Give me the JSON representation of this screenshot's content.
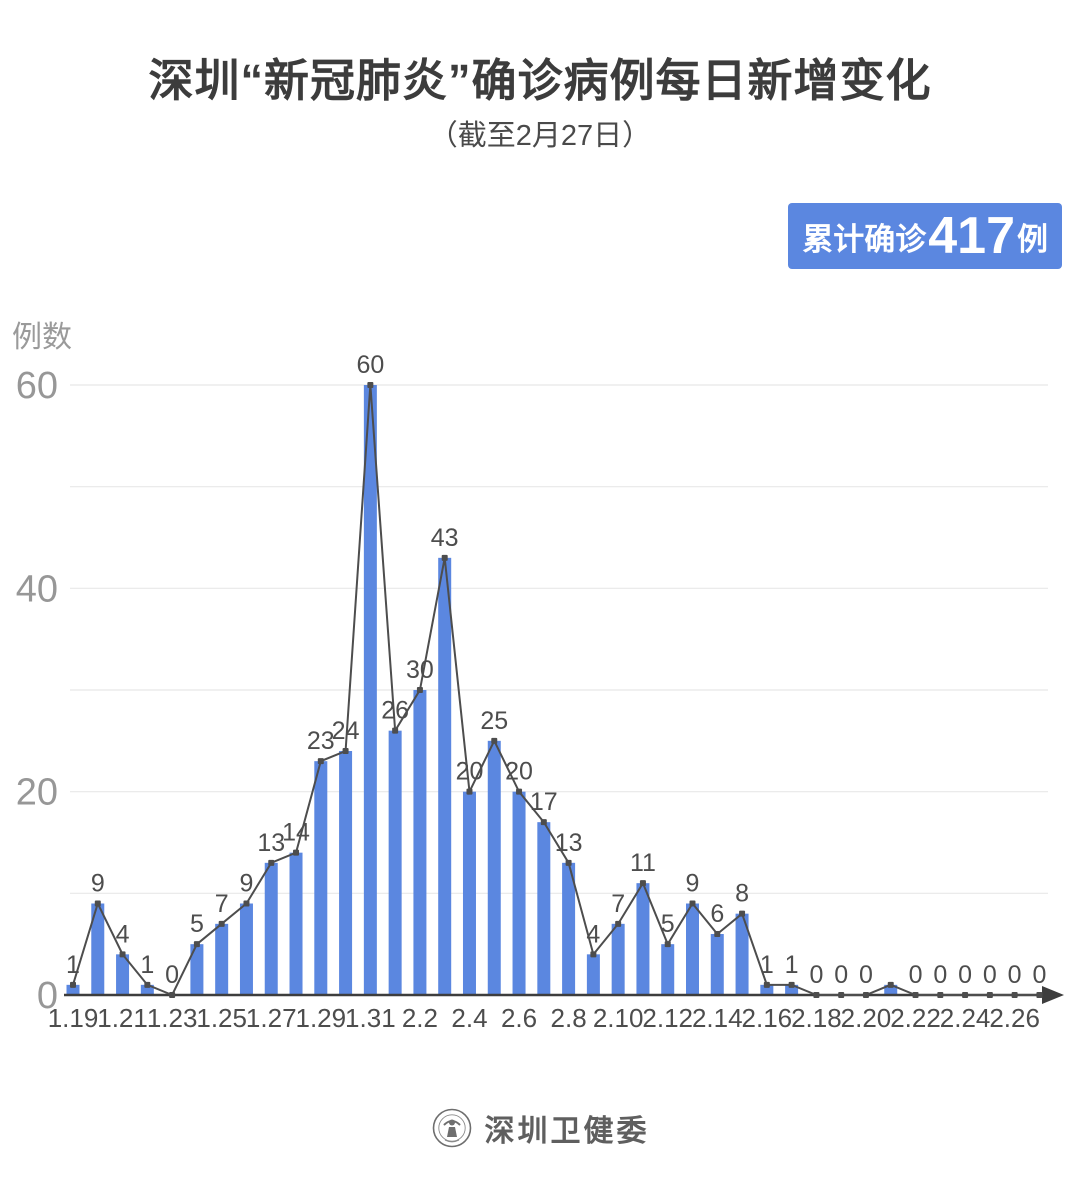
{
  "header": {
    "title": "深圳“新冠肺炎”确诊病例每日新增变化",
    "subtitle": "（截至2月27日）"
  },
  "badge": {
    "prefix": "累计确诊",
    "value": "417",
    "suffix": "例",
    "bg_color": "#5b87e0",
    "text_color": "#ffffff"
  },
  "chart_data": {
    "type": "bar",
    "ylabel": "例数",
    "categories": [
      "1.19",
      "1.20",
      "1.21",
      "1.22",
      "1.23",
      "1.24",
      "1.25",
      "1.26",
      "1.27",
      "1.28",
      "1.29",
      "1.30",
      "1.31",
      "2.1",
      "2.2",
      "2.3",
      "2.4",
      "2.5",
      "2.6",
      "2.7",
      "2.8",
      "2.9",
      "2.10",
      "2.11",
      "2.12",
      "2.13",
      "2.14",
      "2.15",
      "2.16",
      "2.17",
      "2.18",
      "2.19",
      "2.20",
      "2.21",
      "2.22",
      "2.23",
      "2.24",
      "2.25",
      "2.26",
      "2.27"
    ],
    "values": [
      1,
      9,
      4,
      1,
      0,
      5,
      7,
      9,
      13,
      14,
      23,
      24,
      60,
      26,
      30,
      43,
      20,
      25,
      20,
      17,
      13,
      4,
      7,
      11,
      5,
      9,
      6,
      8,
      1,
      1,
      0,
      0,
      0,
      1,
      0,
      0,
      0,
      0,
      0,
      0
    ],
    "value_labels_hidden": [
      "2.21"
    ],
    "x_tick_labels": [
      "1.19",
      "1.21",
      "1.23",
      "1.25",
      "1.27",
      "1.29",
      "1.31",
      "2.2",
      "2.4",
      "2.6",
      "2.8",
      "2.10",
      "2.12",
      "2.14",
      "2.16",
      "2.18",
      "2.20",
      "2.22",
      "2.24",
      "2.26"
    ],
    "yticks": [
      0,
      20,
      40,
      60
    ],
    "gridline_values": [
      10,
      20,
      30,
      40,
      50,
      60
    ],
    "ylim": [
      0,
      62
    ],
    "legend": "none",
    "grid": "horizontal",
    "colors": {
      "bar": "#5b87e0",
      "line": "#4d4d4d",
      "marker": "#4d4d4d",
      "grid": "#e8e8e8",
      "axis": "#3d3d3d",
      "y_tick_label": "#979797",
      "x_tick_label": "#4d4d4d",
      "data_label": "#4d4d4d"
    }
  },
  "footer": {
    "org_name": "深圳卫健委"
  }
}
